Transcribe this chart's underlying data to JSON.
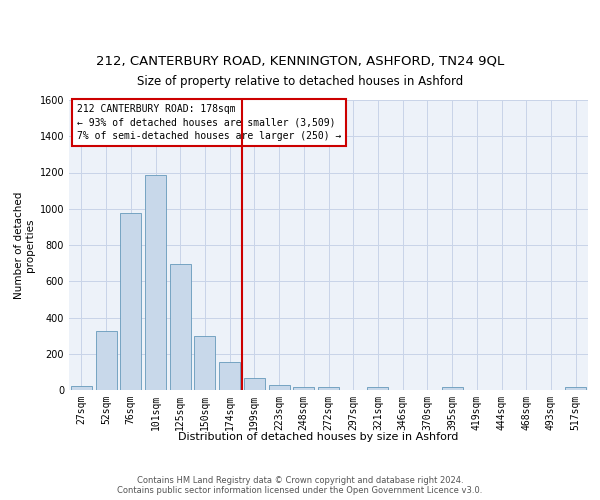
{
  "title1": "212, CANTERBURY ROAD, KENNINGTON, ASHFORD, TN24 9QL",
  "title2": "Size of property relative to detached houses in Ashford",
  "xlabel": "Distribution of detached houses by size in Ashford",
  "ylabel": "Number of detached\nproperties",
  "categories": [
    "27sqm",
    "52sqm",
    "76sqm",
    "101sqm",
    "125sqm",
    "150sqm",
    "174sqm",
    "199sqm",
    "223sqm",
    "248sqm",
    "272sqm",
    "297sqm",
    "321sqm",
    "346sqm",
    "370sqm",
    "395sqm",
    "419sqm",
    "444sqm",
    "468sqm",
    "493sqm",
    "517sqm"
  ],
  "values": [
    20,
    325,
    975,
    1185,
    695,
    300,
    155,
    65,
    25,
    15,
    15,
    0,
    15,
    0,
    0,
    15,
    0,
    0,
    0,
    0,
    15
  ],
  "bar_color": "#c8d8ea",
  "bar_edge_color": "#6699bb",
  "vline_index": 6,
  "vline_color": "#cc0000",
  "annotation_text_line1": "212 CANTERBURY ROAD: 178sqm",
  "annotation_text_line2": "← 93% of detached houses are smaller (3,509)",
  "annotation_text_line3": "7% of semi-detached houses are larger (250) →",
  "annotation_box_color": "#cc0000",
  "ylim": [
    0,
    1600
  ],
  "yticks": [
    0,
    200,
    400,
    600,
    800,
    1000,
    1200,
    1400,
    1600
  ],
  "grid_color": "#c8d4e8",
  "background_color": "#edf2f9",
  "footer_text": "Contains HM Land Registry data © Crown copyright and database right 2024.\nContains public sector information licensed under the Open Government Licence v3.0.",
  "title1_fontsize": 9.5,
  "title2_fontsize": 8.5,
  "xlabel_fontsize": 8,
  "ylabel_fontsize": 7.5,
  "tick_fontsize": 7,
  "annotation_fontsize": 7,
  "footer_fontsize": 6
}
